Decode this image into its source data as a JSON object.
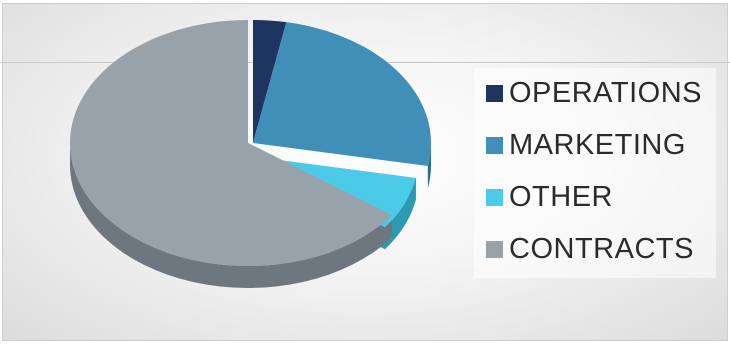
{
  "chart_data": {
    "type": "pie",
    "style": "3d",
    "title": "",
    "legend_position": "right",
    "categories": [
      "OPERATIONS",
      "MARKETING",
      "OTHER",
      "CONTRACTS"
    ],
    "values": [
      3,
      25,
      7,
      65
    ],
    "colors": [
      "#1d3560",
      "#3f8fb8",
      "#4bcbe8",
      "#98a2aa"
    ],
    "side_colors": [
      "#0f203e",
      "#2a6a8c",
      "#2d9ab4",
      "#6e777f"
    ]
  }
}
